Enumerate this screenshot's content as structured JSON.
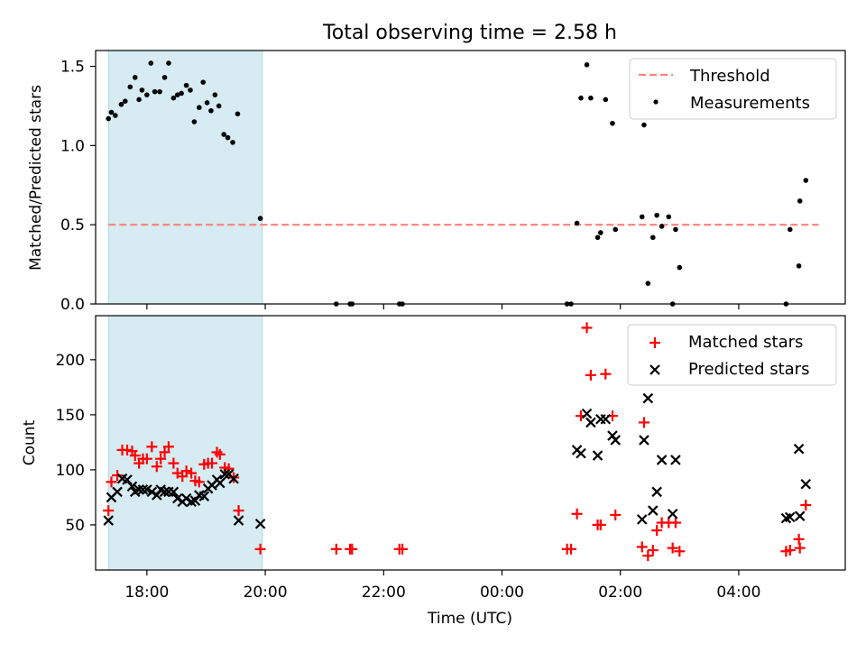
{
  "figure": {
    "title": "Total observing time = 2.58 h",
    "xlabel": "Time (UTC)",
    "colors": {
      "threshold": "#ff7f7f",
      "shade": "#add8e6",
      "measurements": "#000000",
      "matched": "#ff0000",
      "predicted": "#000000"
    }
  },
  "chart_data": [
    {
      "type": "scatter",
      "panel": "top",
      "ylabel": "Matched/Predicted stars",
      "xlim": [
        "17:08",
        "05:48"
      ],
      "ylim": [
        0,
        1.6
      ],
      "x_ticks": [
        "18:00",
        "20:00",
        "22:00",
        "00:00",
        "02:00",
        "04:00"
      ],
      "y_ticks": [
        0.0,
        0.5,
        1.0,
        1.5
      ],
      "y_tick_labels": [
        "0.0",
        "0.5",
        "1.0",
        "1.5"
      ],
      "legend_position": "top-right",
      "shaded_span": [
        "17:21",
        "19:57"
      ],
      "threshold": {
        "name": "Threshold",
        "value": 0.5,
        "x_range": [
          "17:21",
          "05:21"
        ]
      },
      "series": [
        {
          "name": "Measurements",
          "points": [
            [
              "17:21",
              1.17
            ],
            [
              "17:24",
              1.21
            ],
            [
              "17:28",
              1.19
            ],
            [
              "17:34",
              1.26
            ],
            [
              "17:38",
              1.28
            ],
            [
              "17:43",
              1.37
            ],
            [
              "17:48",
              1.43
            ],
            [
              "17:52",
              1.29
            ],
            [
              "17:55",
              1.35
            ],
            [
              "18:00",
              1.32
            ],
            [
              "18:04",
              1.52
            ],
            [
              "18:08",
              1.34
            ],
            [
              "18:13",
              1.34
            ],
            [
              "18:18",
              1.43
            ],
            [
              "18:22",
              1.52
            ],
            [
              "18:27",
              1.3
            ],
            [
              "18:31",
              1.32
            ],
            [
              "18:35",
              1.33
            ],
            [
              "18:40",
              1.38
            ],
            [
              "18:44",
              1.35
            ],
            [
              "18:48",
              1.15
            ],
            [
              "18:53",
              1.24
            ],
            [
              "18:57",
              1.4
            ],
            [
              "19:01",
              1.27
            ],
            [
              "19:05",
              1.22
            ],
            [
              "19:09",
              1.32
            ],
            [
              "19:13",
              1.25
            ],
            [
              "19:18",
              1.07
            ],
            [
              "19:22",
              1.05
            ],
            [
              "19:27",
              1.02
            ],
            [
              "19:32",
              1.2
            ],
            [
              "19:55",
              0.54
            ],
            [
              "21:12",
              0.0
            ],
            [
              "21:26",
              0.0
            ],
            [
              "21:28",
              0.0
            ],
            [
              "22:16",
              0.0
            ],
            [
              "22:19",
              0.0
            ],
            [
              "01:06",
              0.0
            ],
            [
              "01:10",
              0.0
            ],
            [
              "01:16",
              0.51
            ],
            [
              "01:20",
              1.3
            ],
            [
              "01:26",
              1.51
            ],
            [
              "01:30",
              1.3
            ],
            [
              "01:37",
              0.42
            ],
            [
              "01:40",
              0.45
            ],
            [
              "01:45",
              1.29
            ],
            [
              "01:52",
              1.14
            ],
            [
              "01:55",
              0.47
            ],
            [
              "02:22",
              0.55
            ],
            [
              "02:24",
              1.13
            ],
            [
              "02:28",
              0.13
            ],
            [
              "02:33",
              0.42
            ],
            [
              "02:37",
              0.56
            ],
            [
              "02:42",
              0.49
            ],
            [
              "02:49",
              0.55
            ],
            [
              "02:53",
              0.0
            ],
            [
              "02:56",
              0.47
            ],
            [
              "03:00",
              0.23
            ],
            [
              "04:48",
              0.0
            ],
            [
              "04:52",
              0.47
            ],
            [
              "05:01",
              0.24
            ],
            [
              "05:02",
              0.65
            ],
            [
              "05:08",
              0.78
            ]
          ]
        }
      ]
    },
    {
      "type": "scatter",
      "panel": "bottom",
      "ylabel": "Count",
      "xlim": [
        "17:08",
        "05:48"
      ],
      "ylim": [
        9,
        240
      ],
      "x_ticks": [
        "18:00",
        "20:00",
        "22:00",
        "00:00",
        "02:00",
        "04:00"
      ],
      "x_tick_labels": [
        "18:00",
        "20:00",
        "22:00",
        "00:00",
        "02:00",
        "04:00"
      ],
      "y_ticks": [
        50,
        100,
        150,
        200
      ],
      "y_tick_labels": [
        "50",
        "100",
        "150",
        "200"
      ],
      "legend_position": "top-right",
      "shaded_span": [
        "17:21",
        "19:57"
      ],
      "series": [
        {
          "name": "Matched stars",
          "marker": "+",
          "points": [
            [
              "17:21",
              63
            ],
            [
              "17:24",
              89
            ],
            [
              "17:30",
              95
            ],
            [
              "17:35",
              118
            ],
            [
              "17:40",
              118
            ],
            [
              "17:45",
              117
            ],
            [
              "17:48",
              113
            ],
            [
              "17:52",
              106
            ],
            [
              "17:56",
              110
            ],
            [
              "18:00",
              110
            ],
            [
              "18:05",
              121
            ],
            [
              "18:10",
              103
            ],
            [
              "18:14",
              110
            ],
            [
              "18:18",
              116
            ],
            [
              "18:22",
              121
            ],
            [
              "18:27",
              106
            ],
            [
              "18:31",
              97
            ],
            [
              "18:36",
              94
            ],
            [
              "18:40",
              99
            ],
            [
              "18:45",
              97
            ],
            [
              "18:49",
              90
            ],
            [
              "18:53",
              89
            ],
            [
              "18:58",
              105
            ],
            [
              "19:02",
              106
            ],
            [
              "19:06",
              106
            ],
            [
              "19:11",
              116
            ],
            [
              "19:14",
              114
            ],
            [
              "19:19",
              102
            ],
            [
              "19:23",
              101
            ],
            [
              "19:28",
              93
            ],
            [
              "19:33",
              63
            ],
            [
              "19:55",
              28
            ],
            [
              "21:12",
              28
            ],
            [
              "21:26",
              28
            ],
            [
              "21:28",
              28
            ],
            [
              "22:16",
              28
            ],
            [
              "22:19",
              28
            ],
            [
              "01:06",
              28
            ],
            [
              "01:10",
              28
            ],
            [
              "01:16",
              60
            ],
            [
              "01:20",
              149
            ],
            [
              "01:26",
              229
            ],
            [
              "01:30",
              186
            ],
            [
              "01:37",
              50
            ],
            [
              "01:40",
              50
            ],
            [
              "01:45",
              187
            ],
            [
              "01:52",
              149
            ],
            [
              "01:55",
              59
            ],
            [
              "02:22",
              30
            ],
            [
              "02:24",
              143
            ],
            [
              "02:28",
              22
            ],
            [
              "02:33",
              27
            ],
            [
              "02:37",
              45
            ],
            [
              "02:42",
              52
            ],
            [
              "02:49",
              52
            ],
            [
              "02:53",
              29
            ],
            [
              "02:56",
              52
            ],
            [
              "03:00",
              26
            ],
            [
              "04:48",
              26
            ],
            [
              "04:52",
              27
            ],
            [
              "05:01",
              37
            ],
            [
              "05:02",
              29
            ],
            [
              "05:08",
              68
            ]
          ]
        },
        {
          "name": "Predicted stars",
          "marker": "x",
          "points": [
            [
              "17:21",
              54
            ],
            [
              "17:24",
              75
            ],
            [
              "17:30",
              80
            ],
            [
              "17:35",
              92
            ],
            [
              "17:40",
              91
            ],
            [
              "17:45",
              85
            ],
            [
              "17:48",
              80
            ],
            [
              "17:52",
              82
            ],
            [
              "17:56",
              82
            ],
            [
              "18:00",
              82
            ],
            [
              "18:05",
              80
            ],
            [
              "18:10",
              77
            ],
            [
              "18:14",
              82
            ],
            [
              "18:18",
              80
            ],
            [
              "18:22",
              80
            ],
            [
              "18:27",
              80
            ],
            [
              "18:31",
              74
            ],
            [
              "18:36",
              71
            ],
            [
              "18:40",
              74
            ],
            [
              "18:45",
              71
            ],
            [
              "18:49",
              72
            ],
            [
              "18:53",
              77
            ],
            [
              "18:58",
              76
            ],
            [
              "19:02",
              83
            ],
            [
              "19:06",
              86
            ],
            [
              "19:11",
              91
            ],
            [
              "19:14",
              88
            ],
            [
              "19:19",
              96
            ],
            [
              "19:23",
              96
            ],
            [
              "19:28",
              92
            ],
            [
              "19:33",
              54
            ],
            [
              "19:55",
              51
            ],
            [
              "01:16",
              118
            ],
            [
              "01:20",
              115
            ],
            [
              "01:26",
              151
            ],
            [
              "01:30",
              143
            ],
            [
              "01:37",
              113
            ],
            [
              "01:40",
              146
            ],
            [
              "01:45",
              146
            ],
            [
              "01:52",
              131
            ],
            [
              "01:55",
              127
            ],
            [
              "02:22",
              55
            ],
            [
              "02:24",
              127
            ],
            [
              "02:28",
              165
            ],
            [
              "02:33",
              63
            ],
            [
              "02:37",
              80
            ],
            [
              "02:42",
              109
            ],
            [
              "02:53",
              60
            ],
            [
              "02:56",
              109
            ],
            [
              "04:48",
              56
            ],
            [
              "04:52",
              57
            ],
            [
              "05:01",
              119
            ],
            [
              "05:02",
              58
            ],
            [
              "05:08",
              87
            ]
          ]
        }
      ]
    }
  ]
}
